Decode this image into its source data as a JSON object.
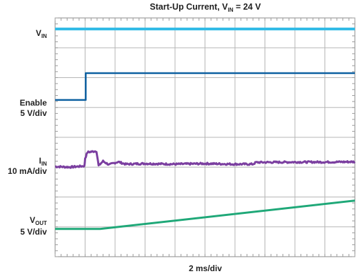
{
  "chart_data": {
    "type": "line",
    "title": {
      "pre": "Start-Up Current, V",
      "sub": "IN",
      "post": " = 24 V"
    },
    "xlabel": "2 ms/div",
    "x_divisions": 10,
    "y_divisions": 8,
    "grid": true,
    "channel_labels": {
      "vin": {
        "main": "V",
        "sub": "IN"
      },
      "enable": {
        "line1": "Enable",
        "line2": "5 V/div"
      },
      "iin": {
        "main": "I",
        "sub": "IN",
        "line2": "10 mA/div"
      },
      "vout": {
        "main": "V",
        "sub": "OUT",
        "line2": "5 V/div"
      }
    },
    "series": [
      {
        "key": "vin",
        "color": "#33bbe6",
        "width": 4,
        "points": [
          [
            0,
            7.63
          ],
          [
            10,
            7.63
          ]
        ]
      },
      {
        "key": "enable",
        "color": "#0b5fa0",
        "width": 2.5,
        "points": [
          [
            0,
            5.25
          ],
          [
            1.02,
            5.25
          ],
          [
            1.02,
            6.15
          ],
          [
            10,
            6.15
          ]
        ]
      },
      {
        "key": "iin",
        "color": "#7b3fa0",
        "width": 3,
        "points": [
          [
            0,
            3.02
          ],
          [
            0.5,
            3.0
          ],
          [
            0.98,
            3.04
          ],
          [
            1.0,
            3.3
          ],
          [
            1.08,
            3.5
          ],
          [
            1.38,
            3.54
          ],
          [
            1.45,
            3.05
          ],
          [
            1.6,
            3.2
          ],
          [
            1.8,
            3.08
          ],
          [
            2.1,
            3.18
          ],
          [
            2.35,
            3.1
          ],
          [
            3,
            3.12
          ],
          [
            4,
            3.1
          ],
          [
            5,
            3.12
          ],
          [
            6,
            3.1
          ],
          [
            6.6,
            3.1
          ],
          [
            6.7,
            3.16
          ],
          [
            8,
            3.17
          ],
          [
            9,
            3.17
          ],
          [
            10,
            3.18
          ]
        ],
        "noise": 0.03
      },
      {
        "key": "vout",
        "color": "#1fa878",
        "width": 3,
        "points": [
          [
            0,
            0.93
          ],
          [
            1.5,
            0.93
          ],
          [
            10,
            1.88
          ]
        ]
      }
    ]
  }
}
